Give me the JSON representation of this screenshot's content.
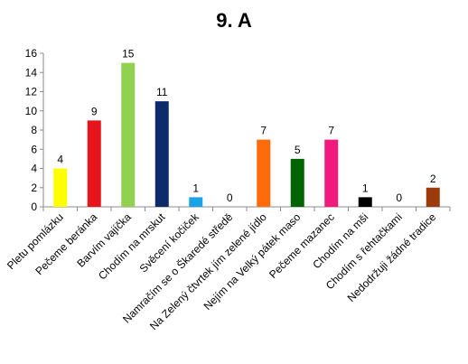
{
  "chart_data": {
    "type": "bar",
    "title": "9. A",
    "xlabel": "",
    "ylabel": "",
    "ylim": [
      0,
      16
    ],
    "yticks": [
      0,
      2,
      4,
      6,
      8,
      10,
      12,
      14,
      16
    ],
    "grid": false,
    "legend": "none",
    "categories": [
      "Pletu pomlázku",
      "Pečeme beránka",
      "Barvím vajíčka",
      "Chodím na mrskut",
      "Svěcení kočiček",
      "Namračím se o Škaredé středě",
      "Na Zelený čtvrtek jím zelené jídlo",
      "Nejím na Velký pátek maso",
      "Pečeme mazanec",
      "Chodím na mši",
      "Chodím s řehtačkami",
      "Nedodržuji žádné tradice"
    ],
    "values": [
      4,
      9,
      15,
      11,
      1,
      0,
      7,
      5,
      7,
      1,
      0,
      2
    ],
    "colors": [
      "#ffff00",
      "#e8141b",
      "#92d050",
      "#0d2b6b",
      "#1aa3e8",
      "#ffffff",
      "#ff6a0a",
      "#006400",
      "#f0197d",
      "#000000",
      "#ffffff",
      "#9c3a0c"
    ]
  }
}
